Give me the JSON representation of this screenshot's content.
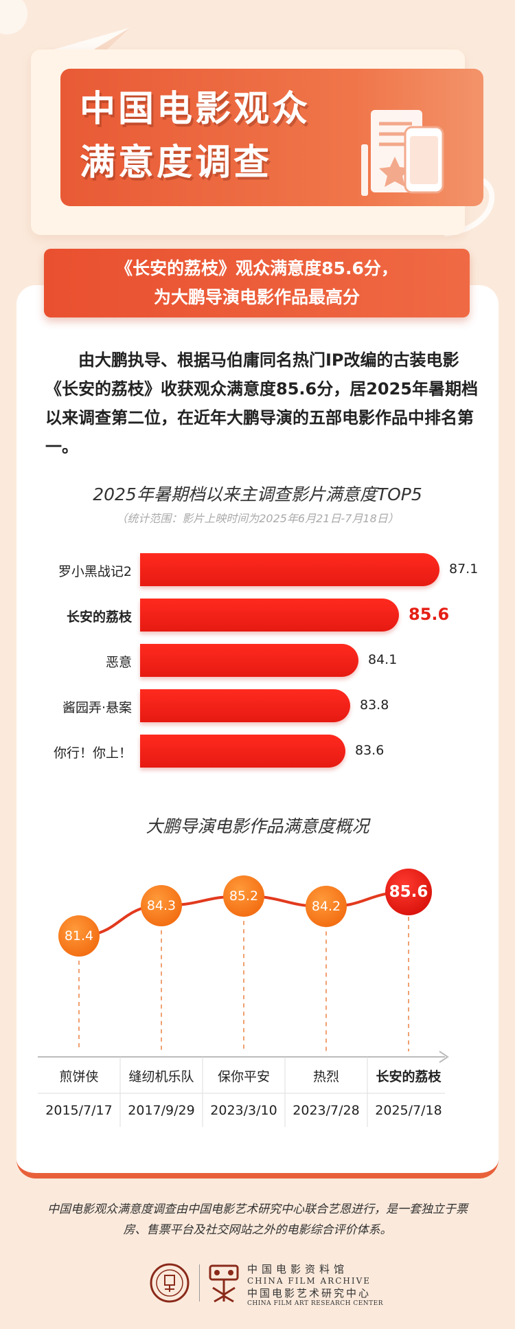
{
  "header": {
    "title_line1": "中国电影观众",
    "title_line2": "满意度调查"
  },
  "ribbon": {
    "line1": "《长安的荔枝》观众满意度85.6分，",
    "line2": "为大鹏导演电影作品最高分"
  },
  "intro": "由大鹏执导、根据马伯庸同名热门IP改编的古装电影《长安的荔枝》收获观众满意度85.6分，居2025年暑期档以来调查第二位，在近年大鹏导演的五部电影作品中排名第一。",
  "colors": {
    "accent": "#e8603a",
    "bar": "#e61a12",
    "dot": "#f26b10",
    "highlight": "#d8120a"
  },
  "chart_data": [
    {
      "type": "bar",
      "title": "2025年暑期档以来主调查影片满意度TOP5",
      "subtitle": "（统计范围：影片上映时间为2025年6月21日-7月18日）",
      "categories": [
        "罗小黑战记2",
        "长安的荔枝",
        "恶意",
        "酱园弄·悬案",
        "你行！你上！"
      ],
      "values": [
        87.1,
        85.6,
        84.1,
        83.8,
        83.6
      ],
      "value_labels": [
        "87.1",
        "85.6",
        "84.1",
        "83.8",
        "83.6"
      ],
      "highlight_index": 1
    },
    {
      "type": "line",
      "title": "大鹏导演电影作品满意度概况",
      "categories": [
        "煎饼侠",
        "缝纫机乐队",
        "保你平安",
        "热烈",
        "长安的荔枝"
      ],
      "dates": [
        "2015/7/17",
        "2017/9/29",
        "2023/3/10",
        "2023/7/28",
        "2025/7/18"
      ],
      "values": [
        81.4,
        84.3,
        85.2,
        84.2,
        85.6
      ],
      "value_labels": [
        "81.4",
        "84.3",
        "85.2",
        "84.2",
        "85.6"
      ],
      "highlight_index": 4
    }
  ],
  "footer": {
    "description": "中国电影观众满意度调查由中国电影艺术研究中心联合艺恩进行，是一套独立于票房、售票平台及社交网站之外的电影综合评价体系。",
    "org1_cn": "中国电影资料馆",
    "org1_en": "CHINA FILM ARCHIVE",
    "org2_cn": "中国电影艺术研究中心",
    "org2_en": "CHINA FILM ART RESEARCH CENTER"
  }
}
